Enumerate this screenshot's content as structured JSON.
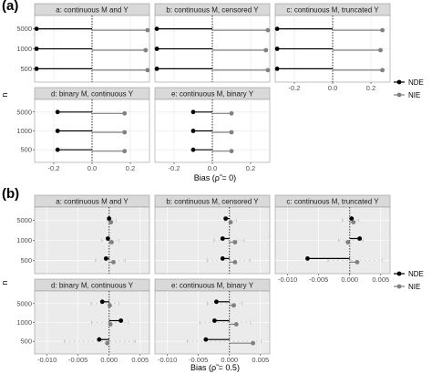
{
  "figure": {
    "panel_a_label": "(a)",
    "panel_b_label": "(b)"
  },
  "colors": {
    "NDE": "#000000",
    "NIE": "#808080",
    "panel_bg_a": "#ffffff",
    "panel_bg_b": "#ebebeb",
    "strip_bg": "#d9d9d9"
  },
  "chart_data": [
    {
      "type": "scatter",
      "id": "a",
      "xlabel": "Bias (ρ̃ = 0)",
      "ylabel": "n",
      "y_categories": [
        "5000",
        "1000",
        "500"
      ],
      "legend": [
        "NDE",
        "NIE"
      ],
      "legend_position": "right",
      "panels": [
        {
          "title": "a: continuous M and Y",
          "xlim": [
            -0.3,
            0.3
          ],
          "x_ticks": [
            -0.2,
            0.0,
            0.2
          ],
          "x_tick_labels": [
            "-0.2",
            "0.0",
            "0.2"
          ],
          "show_x_ticks": false,
          "NDE": {
            "5000": -0.29,
            "1000": -0.29,
            "500": -0.29
          },
          "NIE": {
            "5000": 0.29,
            "1000": 0.28,
            "500": 0.29
          }
        },
        {
          "title": "b: continuous M, censored Y",
          "xlim": [
            -0.3,
            0.3
          ],
          "x_ticks": [
            -0.2,
            0.0,
            0.2
          ],
          "x_tick_labels": [
            "-0.2",
            "0.0",
            "0.2"
          ],
          "show_x_ticks": false,
          "NDE": {
            "5000": -0.29,
            "1000": -0.29,
            "500": -0.29
          },
          "NIE": {
            "5000": 0.29,
            "1000": 0.28,
            "500": 0.29
          }
        },
        {
          "title": "c: continuous M, truncated Y",
          "xlim": [
            -0.3,
            0.3
          ],
          "x_ticks": [
            -0.2,
            0.0,
            0.2
          ],
          "x_tick_labels": [
            "-0.2",
            "0.0",
            "0.2"
          ],
          "show_x_ticks": true,
          "NDE": {
            "5000": -0.29,
            "1000": -0.29,
            "500": -0.29
          },
          "NIE": {
            "5000": 0.26,
            "1000": 0.25,
            "500": 0.26
          }
        },
        {
          "title": "d: binary M, continuous Y",
          "xlim": [
            -0.3,
            0.3
          ],
          "x_ticks": [
            -0.2,
            0.0,
            0.2
          ],
          "x_tick_labels": [
            "-0.2",
            "0.0",
            "0.2"
          ],
          "show_x_ticks": true,
          "NDE": {
            "5000": -0.18,
            "1000": -0.18,
            "500": -0.18
          },
          "NIE": {
            "5000": 0.17,
            "1000": 0.17,
            "500": 0.17
          }
        },
        {
          "title": "e: continuous M, binary Y",
          "xlim": [
            -0.3,
            0.3
          ],
          "x_ticks": [
            -0.2,
            0.0,
            0.2
          ],
          "x_tick_labels": [
            "-0.2",
            "0.0",
            "0.2"
          ],
          "show_x_ticks": true,
          "NDE": {
            "5000": -0.1,
            "1000": -0.1,
            "500": -0.1
          },
          "NIE": {
            "5000": 0.1,
            "1000": 0.1,
            "500": 0.1
          }
        }
      ]
    },
    {
      "type": "scatter",
      "id": "b",
      "xlabel": "Bias (ρ̃ = 0.5)",
      "ylabel": "n",
      "y_categories": [
        "5000",
        "1000",
        "500"
      ],
      "legend": [
        "NDE",
        "NIE"
      ],
      "legend_position": "right",
      "panels": [
        {
          "title": "a: continuous M and Y",
          "xlim": [
            -0.012,
            0.0065
          ],
          "x_ticks": [
            -0.01,
            -0.005,
            0.0,
            0.005
          ],
          "x_tick_labels": [
            "-0.010",
            "-0.005",
            "0.000",
            "0.005"
          ],
          "show_x_ticks": false,
          "NDE": {
            "5000": 0.0,
            "1000": -0.0002,
            "500": -0.0005
          },
          "NIE": {
            "5000": 0.0003,
            "1000": 0.0004,
            "500": 0.0007
          },
          "ci": {
            "5000": [
              -0.0003,
              0.0011
            ],
            "1000": [
              -0.0012,
              0.0016
            ],
            "500": [
              -0.0022,
              0.0026
            ]
          }
        },
        {
          "title": "b: continuous M, censored Y",
          "xlim": [
            -0.012,
            0.0065
          ],
          "x_ticks": [
            -0.01,
            -0.005,
            0.0,
            0.005
          ],
          "x_tick_labels": [
            "-0.010",
            "-0.005",
            "0.000",
            "0.005"
          ],
          "show_x_ticks": false,
          "NDE": {
            "5000": -0.0006,
            "1000": -0.0011,
            "500": -0.0011
          },
          "NIE": {
            "5000": 0.0002,
            "1000": 0.0009,
            "500": 0.0009
          },
          "ci": {
            "5000": [
              -0.0008,
              0.0011
            ],
            "1000": [
              -0.0025,
              0.0024
            ],
            "500": [
              -0.0036,
              0.0033
            ]
          }
        },
        {
          "title": "c: continuous M, truncated Y",
          "xlim": [
            -0.012,
            0.0065
          ],
          "x_ticks": [
            -0.01,
            -0.005,
            0.0,
            0.005
          ],
          "x_tick_labels": [
            "-0.010",
            "-0.005",
            "0.000",
            "0.005"
          ],
          "show_x_ticks": true,
          "NDE": {
            "5000": 0.0003,
            "1000": 0.0016,
            "500": -0.0068
          },
          "NIE": {
            "5000": 0.0006,
            "1000": -0.0003,
            "500": 0.0012
          },
          "ci": {
            "5000": [
              -0.0012,
              0.0014
            ],
            "1000": [
              -0.0018,
              0.0021
            ],
            "500": [
              -0.0035,
              0.0052
            ]
          }
        },
        {
          "title": "d: binary M, continuous Y",
          "xlim": [
            -0.012,
            0.0065
          ],
          "x_ticks": [
            -0.01,
            -0.005,
            0.0,
            0.005
          ],
          "x_tick_labels": [
            "-0.010",
            "-0.005",
            "0.000",
            "0.005"
          ],
          "show_x_ticks": true,
          "NDE": {
            "5000": -0.0011,
            "1000": 0.0019,
            "500": -0.0016
          },
          "NIE": {
            "5000": 0.0001,
            "1000": 0.0002,
            "500": -0.0003
          },
          "ci": {
            "5000": [
              -0.0029,
              0.0016
            ],
            "1000": [
              -0.0028,
              0.0031
            ],
            "500": [
              -0.0072,
              0.0042
            ]
          }
        },
        {
          "title": "e: continuous M, binary Y",
          "xlim": [
            -0.012,
            0.0065
          ],
          "x_ticks": [
            -0.01,
            -0.005,
            0.0,
            0.005
          ],
          "x_tick_labels": [
            "-0.010",
            "-0.005",
            "0.000",
            "0.005"
          ],
          "show_x_ticks": true,
          "NDE": {
            "5000": -0.0021,
            "1000": -0.0024,
            "500": -0.0038
          },
          "NIE": {
            "5000": 0.0007,
            "1000": 0.0011,
            "500": 0.0038
          },
          "ci": {
            "5000": [
              -0.0036,
              0.0021
            ],
            "1000": [
              -0.0048,
              0.0034
            ],
            "500": [
              -0.0068,
              0.0051
            ]
          }
        }
      ]
    }
  ]
}
